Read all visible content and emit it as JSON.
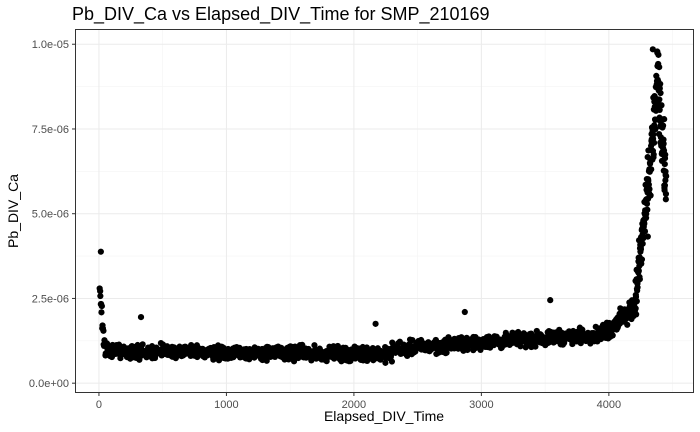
{
  "chart_data": {
    "type": "scatter",
    "title": "Pb_DIV_Ca vs Elapsed_DIV_Time for SMP_210169",
    "xlabel": "Elapsed_DIV_Time",
    "ylabel": "Pb_DIV_Ca",
    "xlim": [
      -180,
      4660
    ],
    "ylim": [
      -2.6e-07,
      1.042e-05
    ],
    "x_ticks": [
      0,
      1000,
      2000,
      3000,
      4000
    ],
    "x_tick_labels": [
      "0",
      "1000",
      "2000",
      "3000",
      "4000"
    ],
    "y_ticks": [
      0,
      2.5e-06,
      5e-06,
      7.5e-06,
      1e-05
    ],
    "y_tick_labels": [
      "0.0e+00",
      "2.5e-06",
      "5.0e-06",
      "7.5e-06",
      "1.0e-05"
    ],
    "grid": true,
    "legend": "none",
    "point_color": "#000000",
    "segments": [
      {
        "x_from": 5,
        "x_to": 45,
        "count": 14,
        "base_from": 2.6e-06,
        "base_to": 1e-06,
        "spread": 7e-07
      },
      {
        "x_from": 50,
        "x_to": 2300,
        "count": 800,
        "base_from": 9.5e-07,
        "base_to": 8.5e-07,
        "spread": 3e-07
      },
      {
        "x_from": 2300,
        "x_to": 3950,
        "count": 520,
        "base_from": 1e-06,
        "base_to": 1.45e-06,
        "spread": 3e-07
      },
      {
        "x_from": 3950,
        "x_to": 4200,
        "count": 120,
        "base_from": 1.45e-06,
        "base_to": 2.2e-06,
        "spread": 4e-07
      },
      {
        "x_from": 4200,
        "x_to": 4300,
        "count": 80,
        "base_from": 2.2e-06,
        "base_to": 5.5e-06,
        "spread": 1e-06
      },
      {
        "x_from": 4300,
        "x_to": 4390,
        "count": 70,
        "base_from": 5.5e-06,
        "base_to": 9e-06,
        "spread": 1.5e-06
      },
      {
        "x_from": 4390,
        "x_to": 4450,
        "count": 50,
        "base_from": 8.5e-06,
        "base_to": 5.8e-06,
        "spread": 1.4e-06
      }
    ],
    "notable_points": [
      {
        "x": 15,
        "y": 3.88e-06
      },
      {
        "x": 330,
        "y": 1.95e-06
      },
      {
        "x": 2170,
        "y": 1.75e-06
      },
      {
        "x": 2870,
        "y": 2.1e-06
      },
      {
        "x": 3540,
        "y": 2.45e-06
      },
      {
        "x": 4345,
        "y": 9.85e-06
      },
      {
        "x": 4380,
        "y": 9.75e-06
      }
    ]
  }
}
